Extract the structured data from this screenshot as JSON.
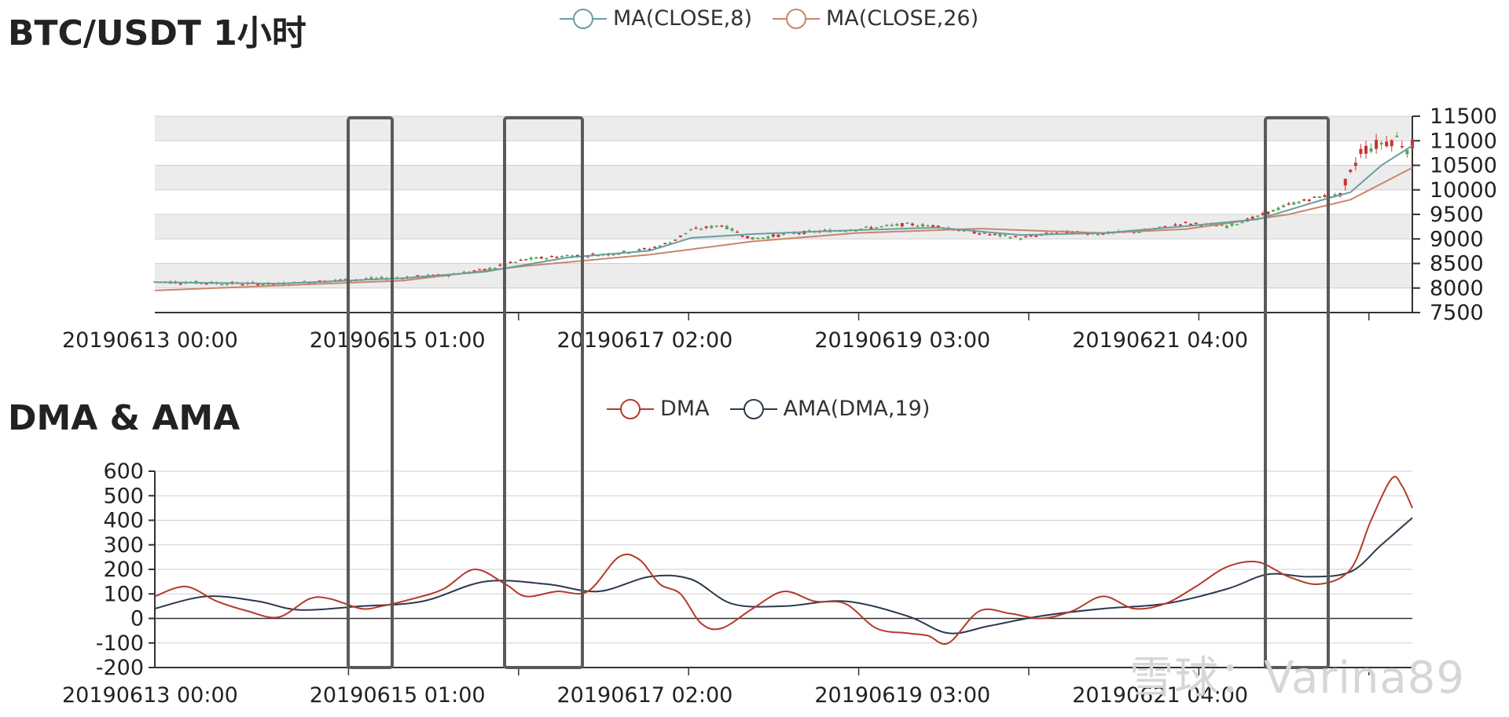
{
  "watermark": "雪球：Varina89",
  "chart_data": [
    {
      "type": "candlestick",
      "title": "BTC/USDT 1小时",
      "legend": [
        {
          "name": "MA(CLOSE,8)",
          "color": "#6a9ea0"
        },
        {
          "name": "MA(CLOSE,26)",
          "color": "#c8866a"
        }
      ],
      "y_ticks": [
        7500,
        8000,
        8500,
        9000,
        9500,
        10000,
        10500,
        11000,
        11500
      ],
      "ylim": [
        7500,
        11500
      ],
      "x_tick_labels": [
        "20190613 00:00",
        "20190615 01:00",
        "20190617 02:00",
        "20190619 03:00",
        "20190621 04:00"
      ],
      "x_range_hours": [
        0,
        244
      ],
      "close_price": [
        {
          "t": 0,
          "v": 8130
        },
        {
          "t": 12,
          "v": 8100
        },
        {
          "t": 24,
          "v": 8080
        },
        {
          "t": 36,
          "v": 8160
        },
        {
          "t": 48,
          "v": 8210
        },
        {
          "t": 56,
          "v": 8260
        },
        {
          "t": 64,
          "v": 8370
        },
        {
          "t": 72,
          "v": 8580
        },
        {
          "t": 80,
          "v": 8660
        },
        {
          "t": 88,
          "v": 8690
        },
        {
          "t": 96,
          "v": 8800
        },
        {
          "t": 100,
          "v": 8930
        },
        {
          "t": 104,
          "v": 9180
        },
        {
          "t": 110,
          "v": 9280
        },
        {
          "t": 116,
          "v": 9000
        },
        {
          "t": 124,
          "v": 9120
        },
        {
          "t": 136,
          "v": 9200
        },
        {
          "t": 146,
          "v": 9300
        },
        {
          "t": 152,
          "v": 9260
        },
        {
          "t": 160,
          "v": 9120
        },
        {
          "t": 168,
          "v": 9020
        },
        {
          "t": 176,
          "v": 9140
        },
        {
          "t": 184,
          "v": 9110
        },
        {
          "t": 192,
          "v": 9160
        },
        {
          "t": 200,
          "v": 9320
        },
        {
          "t": 208,
          "v": 9260
        },
        {
          "t": 214,
          "v": 9450
        },
        {
          "t": 220,
          "v": 9700
        },
        {
          "t": 226,
          "v": 9860
        },
        {
          "t": 230,
          "v": 9900
        },
        {
          "t": 232,
          "v": 10300
        },
        {
          "t": 234,
          "v": 10800
        },
        {
          "t": 238,
          "v": 10950
        },
        {
          "t": 241,
          "v": 11050
        },
        {
          "t": 243,
          "v": 10850
        },
        {
          "t": 244,
          "v": 10900
        }
      ],
      "ma8": [
        {
          "t": 0,
          "v": 8120
        },
        {
          "t": 24,
          "v": 8090
        },
        {
          "t": 48,
          "v": 8200
        },
        {
          "t": 64,
          "v": 8330
        },
        {
          "t": 80,
          "v": 8620
        },
        {
          "t": 96,
          "v": 8760
        },
        {
          "t": 104,
          "v": 9020
        },
        {
          "t": 116,
          "v": 9100
        },
        {
          "t": 136,
          "v": 9180
        },
        {
          "t": 152,
          "v": 9230
        },
        {
          "t": 168,
          "v": 9080
        },
        {
          "t": 184,
          "v": 9120
        },
        {
          "t": 200,
          "v": 9260
        },
        {
          "t": 214,
          "v": 9400
        },
        {
          "t": 226,
          "v": 9780
        },
        {
          "t": 232,
          "v": 9950
        },
        {
          "t": 238,
          "v": 10500
        },
        {
          "t": 244,
          "v": 10900
        }
      ],
      "ma26": [
        {
          "t": 0,
          "v": 7950
        },
        {
          "t": 24,
          "v": 8050
        },
        {
          "t": 48,
          "v": 8150
        },
        {
          "t": 72,
          "v": 8450
        },
        {
          "t": 96,
          "v": 8680
        },
        {
          "t": 116,
          "v": 8950
        },
        {
          "t": 136,
          "v": 9120
        },
        {
          "t": 160,
          "v": 9210
        },
        {
          "t": 184,
          "v": 9120
        },
        {
          "t": 200,
          "v": 9200
        },
        {
          "t": 220,
          "v": 9500
        },
        {
          "t": 232,
          "v": 9800
        },
        {
          "t": 244,
          "v": 10450
        }
      ]
    },
    {
      "type": "line",
      "title": "DMA & AMA",
      "series": [
        {
          "name": "DMA",
          "color": "#b53a2a",
          "points": [
            {
              "t": 0,
              "v": 90
            },
            {
              "t": 6,
              "v": 130
            },
            {
              "t": 12,
              "v": 70
            },
            {
              "t": 18,
              "v": 30
            },
            {
              "t": 24,
              "v": 5
            },
            {
              "t": 30,
              "v": 80
            },
            {
              "t": 34,
              "v": 80
            },
            {
              "t": 40,
              "v": 40
            },
            {
              "t": 44,
              "v": 50
            },
            {
              "t": 50,
              "v": 80
            },
            {
              "t": 56,
              "v": 120
            },
            {
              "t": 62,
              "v": 200
            },
            {
              "t": 68,
              "v": 140
            },
            {
              "t": 72,
              "v": 90
            },
            {
              "t": 78,
              "v": 110
            },
            {
              "t": 84,
              "v": 110
            },
            {
              "t": 90,
              "v": 250
            },
            {
              "t": 94,
              "v": 240
            },
            {
              "t": 98,
              "v": 140
            },
            {
              "t": 102,
              "v": 100
            },
            {
              "t": 106,
              "v": -20
            },
            {
              "t": 110,
              "v": -40
            },
            {
              "t": 116,
              "v": 40
            },
            {
              "t": 122,
              "v": 110
            },
            {
              "t": 128,
              "v": 70
            },
            {
              "t": 134,
              "v": 60
            },
            {
              "t": 140,
              "v": -40
            },
            {
              "t": 146,
              "v": -60
            },
            {
              "t": 150,
              "v": -70
            },
            {
              "t": 154,
              "v": -100
            },
            {
              "t": 160,
              "v": 30
            },
            {
              "t": 166,
              "v": 20
            },
            {
              "t": 172,
              "v": 0
            },
            {
              "t": 178,
              "v": 30
            },
            {
              "t": 184,
              "v": 90
            },
            {
              "t": 190,
              "v": 40
            },
            {
              "t": 196,
              "v": 60
            },
            {
              "t": 202,
              "v": 130
            },
            {
              "t": 208,
              "v": 210
            },
            {
              "t": 214,
              "v": 230
            },
            {
              "t": 220,
              "v": 170
            },
            {
              "t": 226,
              "v": 140
            },
            {
              "t": 232,
              "v": 200
            },
            {
              "t": 236,
              "v": 400
            },
            {
              "t": 240,
              "v": 570
            },
            {
              "t": 242,
              "v": 540
            },
            {
              "t": 244,
              "v": 450
            }
          ]
        },
        {
          "name": "AMA(DMA,19)",
          "color": "#2a3a4e",
          "points": [
            {
              "t": 0,
              "v": 40
            },
            {
              "t": 10,
              "v": 90
            },
            {
              "t": 20,
              "v": 70
            },
            {
              "t": 28,
              "v": 35
            },
            {
              "t": 40,
              "v": 50
            },
            {
              "t": 52,
              "v": 70
            },
            {
              "t": 64,
              "v": 150
            },
            {
              "t": 76,
              "v": 140
            },
            {
              "t": 86,
              "v": 110
            },
            {
              "t": 96,
              "v": 170
            },
            {
              "t": 104,
              "v": 160
            },
            {
              "t": 112,
              "v": 60
            },
            {
              "t": 122,
              "v": 50
            },
            {
              "t": 134,
              "v": 70
            },
            {
              "t": 146,
              "v": 10
            },
            {
              "t": 154,
              "v": -60
            },
            {
              "t": 162,
              "v": -30
            },
            {
              "t": 172,
              "v": 10
            },
            {
              "t": 184,
              "v": 40
            },
            {
              "t": 196,
              "v": 60
            },
            {
              "t": 208,
              "v": 120
            },
            {
              "t": 216,
              "v": 180
            },
            {
              "t": 224,
              "v": 170
            },
            {
              "t": 232,
              "v": 190
            },
            {
              "t": 238,
              "v": 300
            },
            {
              "t": 244,
              "v": 410
            }
          ]
        }
      ],
      "y_ticks": [
        600,
        500,
        400,
        300,
        200,
        100,
        0,
        -100,
        -200
      ],
      "ylim": [
        -200,
        600
      ],
      "x_tick_labels": [
        "20190613 00:00",
        "20190615 01:00",
        "20190617 02:00",
        "20190619 03:00",
        "20190621 04:00"
      ]
    }
  ]
}
